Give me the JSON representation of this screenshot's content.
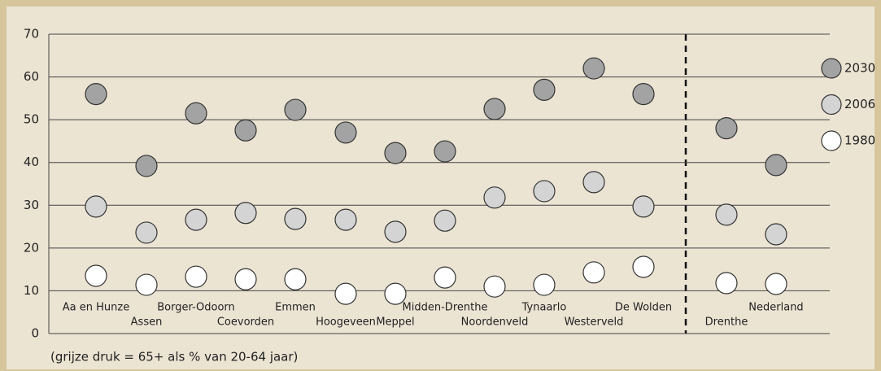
{
  "chart_data": {
    "type": "scatter",
    "categories": [
      "Aa en Hunze",
      "Assen",
      "Borger-Odoorn",
      "Coevorden",
      "Emmen",
      "Hoogeveen",
      "Meppel",
      "Midden-Drenthe",
      "Noordenveld",
      "Tynaarlo",
      "Westerveld",
      "De Wolden",
      "Drenthe",
      "Nederland"
    ],
    "series": [
      {
        "name": "2030",
        "color": "#a3a3a3",
        "values": [
          56,
          39.2,
          51.5,
          47.5,
          52.3,
          47,
          42.2,
          42.6,
          52.5,
          57,
          62,
          56,
          48,
          39.4
        ]
      },
      {
        "name": "2006",
        "color": "#d4d4d4",
        "values": [
          29.7,
          23.6,
          26.6,
          28.2,
          26.8,
          26.6,
          23.8,
          26.4,
          31.8,
          33.3,
          35.4,
          29.7,
          27.8,
          23.2
        ]
      },
      {
        "name": "1980",
        "color": "#ffffff",
        "values": [
          13.5,
          11.4,
          13.3,
          12.7,
          12.7,
          9.3,
          9.3,
          13.1,
          11,
          11.4,
          14.3,
          15.6,
          11.8,
          11.6
        ]
      }
    ],
    "ylim": [
      0,
      70
    ],
    "yticks": [
      0,
      10,
      20,
      30,
      40,
      50,
      60,
      70
    ],
    "grid": true,
    "annotation": "(grijze druk =   65+  als  %  van  20-64  jaar)"
  }
}
